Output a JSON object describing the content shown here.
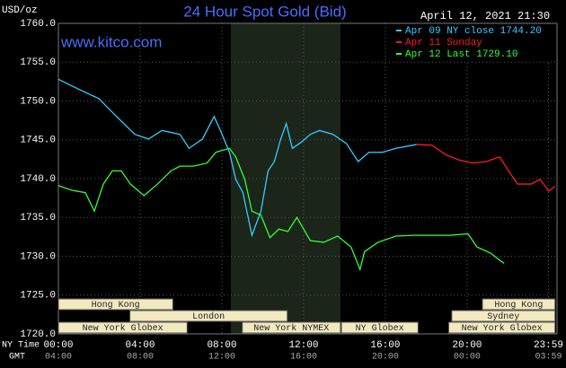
{
  "chart_data": {
    "type": "line",
    "title": "24 Hour Spot Gold (Bid)",
    "date": "April 12, 2021 21:30",
    "website": "www.kitco.com",
    "y_label": "USD/oz",
    "x_label": "NY Time",
    "x2_label": "GMT",
    "xlim": [
      0,
      24.4
    ],
    "ylim": [
      1720,
      1760
    ],
    "yticks": [
      {
        "value": 1720,
        "label": "1720.0"
      },
      {
        "value": 1725,
        "label": "1725.0"
      },
      {
        "value": 1730,
        "label": "1730.0"
      },
      {
        "value": 1735,
        "label": "1735.0"
      },
      {
        "value": 1740,
        "label": "1740.0"
      },
      {
        "value": 1745,
        "label": "1745.0"
      },
      {
        "value": 1750,
        "label": "1750.0"
      },
      {
        "value": 1755,
        "label": "1755.0"
      },
      {
        "value": 1760,
        "label": "1760.0"
      }
    ],
    "xticks": [
      {
        "value": 0,
        "label": "00:00"
      },
      {
        "value": 4,
        "label": "04:00"
      },
      {
        "value": 8,
        "label": "08:00"
      },
      {
        "value": 12,
        "label": "12:00"
      },
      {
        "value": 16,
        "label": "16:00"
      },
      {
        "value": 20,
        "label": "20:00"
      },
      {
        "value": 23.98,
        "label": "23:59"
      }
    ],
    "gmt_labels": [
      "04:00",
      "08:00",
      "12:00",
      "16:00",
      "20:00",
      "00:00",
      "03:59"
    ],
    "grid": true,
    "shade": {
      "start": 8.44,
      "end": 13.8,
      "color": "#1b2519"
    },
    "series": [
      {
        "name": "Apr 09 NY close 1744.20",
        "color": "#33ccff",
        "x": [
          0,
          1.01,
          1.98,
          3.0,
          3.74,
          4.41,
          5.07,
          5.95,
          6.39,
          7.05,
          7.62,
          7.93,
          8.37,
          8.68,
          9.03,
          9.47,
          9.91,
          10.26,
          10.57,
          10.88,
          11.15,
          11.45,
          11.89,
          12.33,
          12.78,
          13.44,
          14.1,
          14.67,
          15.2,
          15.86,
          16.52,
          17.53
        ],
        "values": [
          1752.8,
          1751.5,
          1750.3,
          1747.6,
          1745.7,
          1745.1,
          1746.2,
          1745.7,
          1743.9,
          1745.1,
          1748.0,
          1746.2,
          1743.4,
          1739.9,
          1738.2,
          1732.7,
          1735.8,
          1741.0,
          1742.2,
          1745.1,
          1747.1,
          1743.9,
          1744.7,
          1745.7,
          1746.2,
          1745.7,
          1744.5,
          1742.2,
          1743.4,
          1743.4,
          1743.9,
          1744.4
        ]
      },
      {
        "name": "Apr 11 Sunday",
        "color": "#ff1a1a",
        "x": [
          17.53,
          18.28,
          18.94,
          19.6,
          20.26,
          20.93,
          21.59,
          22.03,
          22.47,
          23.13,
          23.57,
          24.0,
          24.3
        ],
        "values": [
          1744.4,
          1744.3,
          1743.1,
          1742.4,
          1742.0,
          1742.2,
          1742.8,
          1741.0,
          1739.3,
          1739.3,
          1739.9,
          1738.4,
          1739.0
        ]
      },
      {
        "name": "Apr 12 Last 1729.10",
        "color": "#33ff33",
        "x": [
          0,
          0.66,
          1.32,
          1.76,
          2.2,
          2.64,
          3.08,
          3.52,
          4.19,
          4.85,
          5.51,
          5.95,
          6.61,
          7.27,
          7.71,
          8.37,
          8.68,
          9.12,
          9.47,
          9.91,
          10.35,
          10.79,
          11.23,
          11.67,
          12.33,
          12.99,
          13.66,
          14.32,
          14.76,
          14.98,
          15.64,
          16.52,
          17.4,
          18.28,
          19.16,
          20.04,
          20.48,
          21.15,
          21.59,
          21.81
        ],
        "values": [
          1739.1,
          1738.5,
          1738.2,
          1735.8,
          1739.3,
          1741.0,
          1741.0,
          1739.3,
          1737.8,
          1739.3,
          1741.0,
          1741.6,
          1741.6,
          1742.0,
          1743.4,
          1743.9,
          1742.8,
          1739.9,
          1735.8,
          1735.3,
          1732.4,
          1733.5,
          1733.2,
          1735.0,
          1732.0,
          1731.8,
          1732.6,
          1731.2,
          1728.3,
          1730.6,
          1731.8,
          1732.6,
          1732.7,
          1732.7,
          1732.7,
          1732.9,
          1731.2,
          1730.4,
          1729.5,
          1729.1
        ]
      }
    ],
    "sessions": [
      {
        "label": "Hong Kong",
        "row": 1,
        "start": 0,
        "end": 5.6
      },
      {
        "label": "Hong Kong",
        "row": 1,
        "start": 20.75,
        "end": 24.3
      },
      {
        "label": "London",
        "row": 2,
        "start": 3.5,
        "end": 11.2
      },
      {
        "label": "Sydney",
        "row": 2,
        "start": 19.25,
        "end": 24.3
      },
      {
        "label": "New York Globex",
        "row": 3,
        "start": 0,
        "end": 6.3
      },
      {
        "label": "New York NYMEX",
        "row": 3,
        "start": 9.0,
        "end": 13.8
      },
      {
        "label": "NY Globex",
        "row": 3,
        "start": 13.85,
        "end": 17.6
      },
      {
        "label": "New York Globex",
        "row": 3,
        "start": 19.1,
        "end": 24.3
      }
    ]
  }
}
